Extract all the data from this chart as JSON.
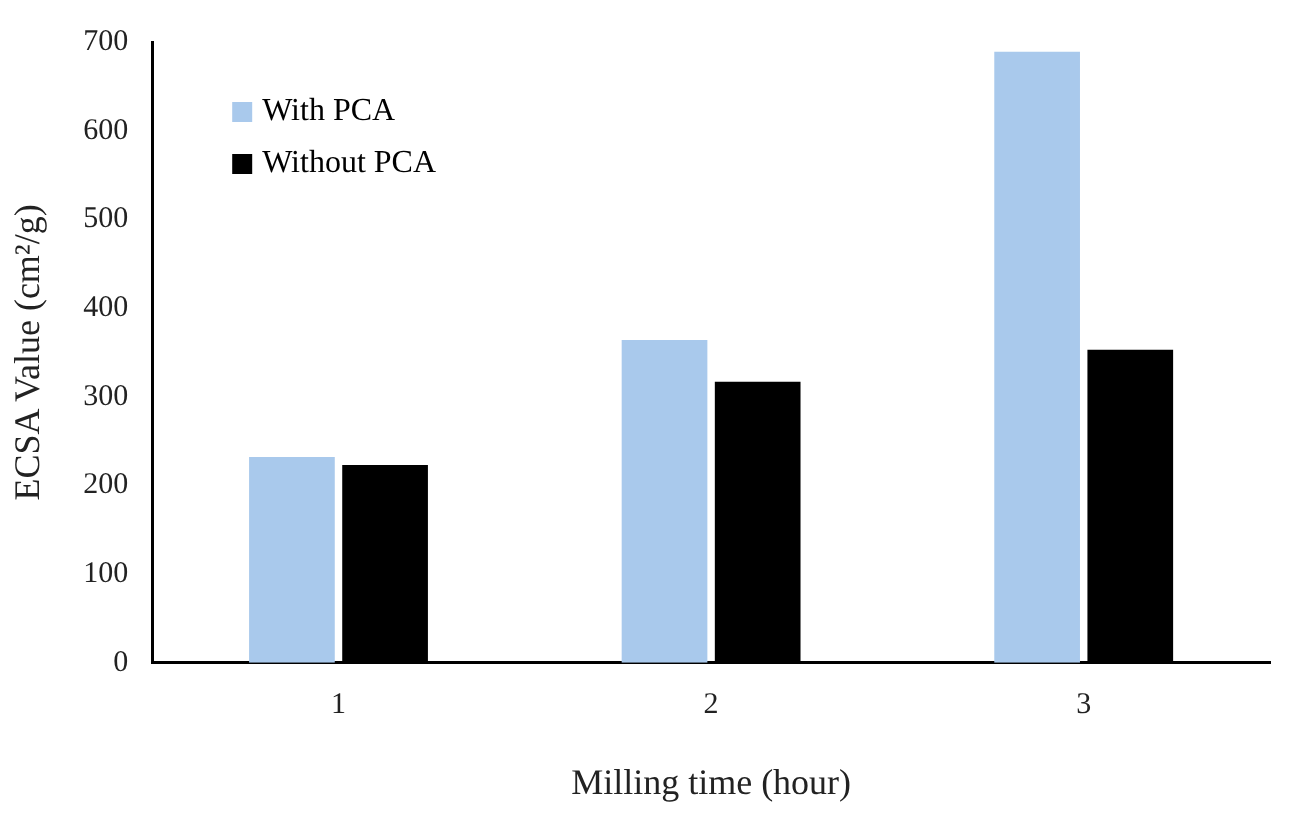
{
  "chart_data": {
    "type": "bar",
    "xlabel": "Milling time (hour)",
    "ylabel": "ECSA Value (cm²/g)",
    "categories": [
      "1",
      "2",
      "3"
    ],
    "series": [
      {
        "name": "With PCA",
        "color": "#a9c9ec",
        "values": [
          232,
          364,
          689
        ]
      },
      {
        "name": "Without PCA",
        "color": "#000000",
        "values": [
          223,
          317,
          353
        ]
      }
    ],
    "ylim": [
      0,
      700
    ],
    "yticks": [
      0,
      100,
      200,
      300,
      400,
      500,
      600,
      700
    ],
    "grid": false,
    "legend": "top left"
  }
}
